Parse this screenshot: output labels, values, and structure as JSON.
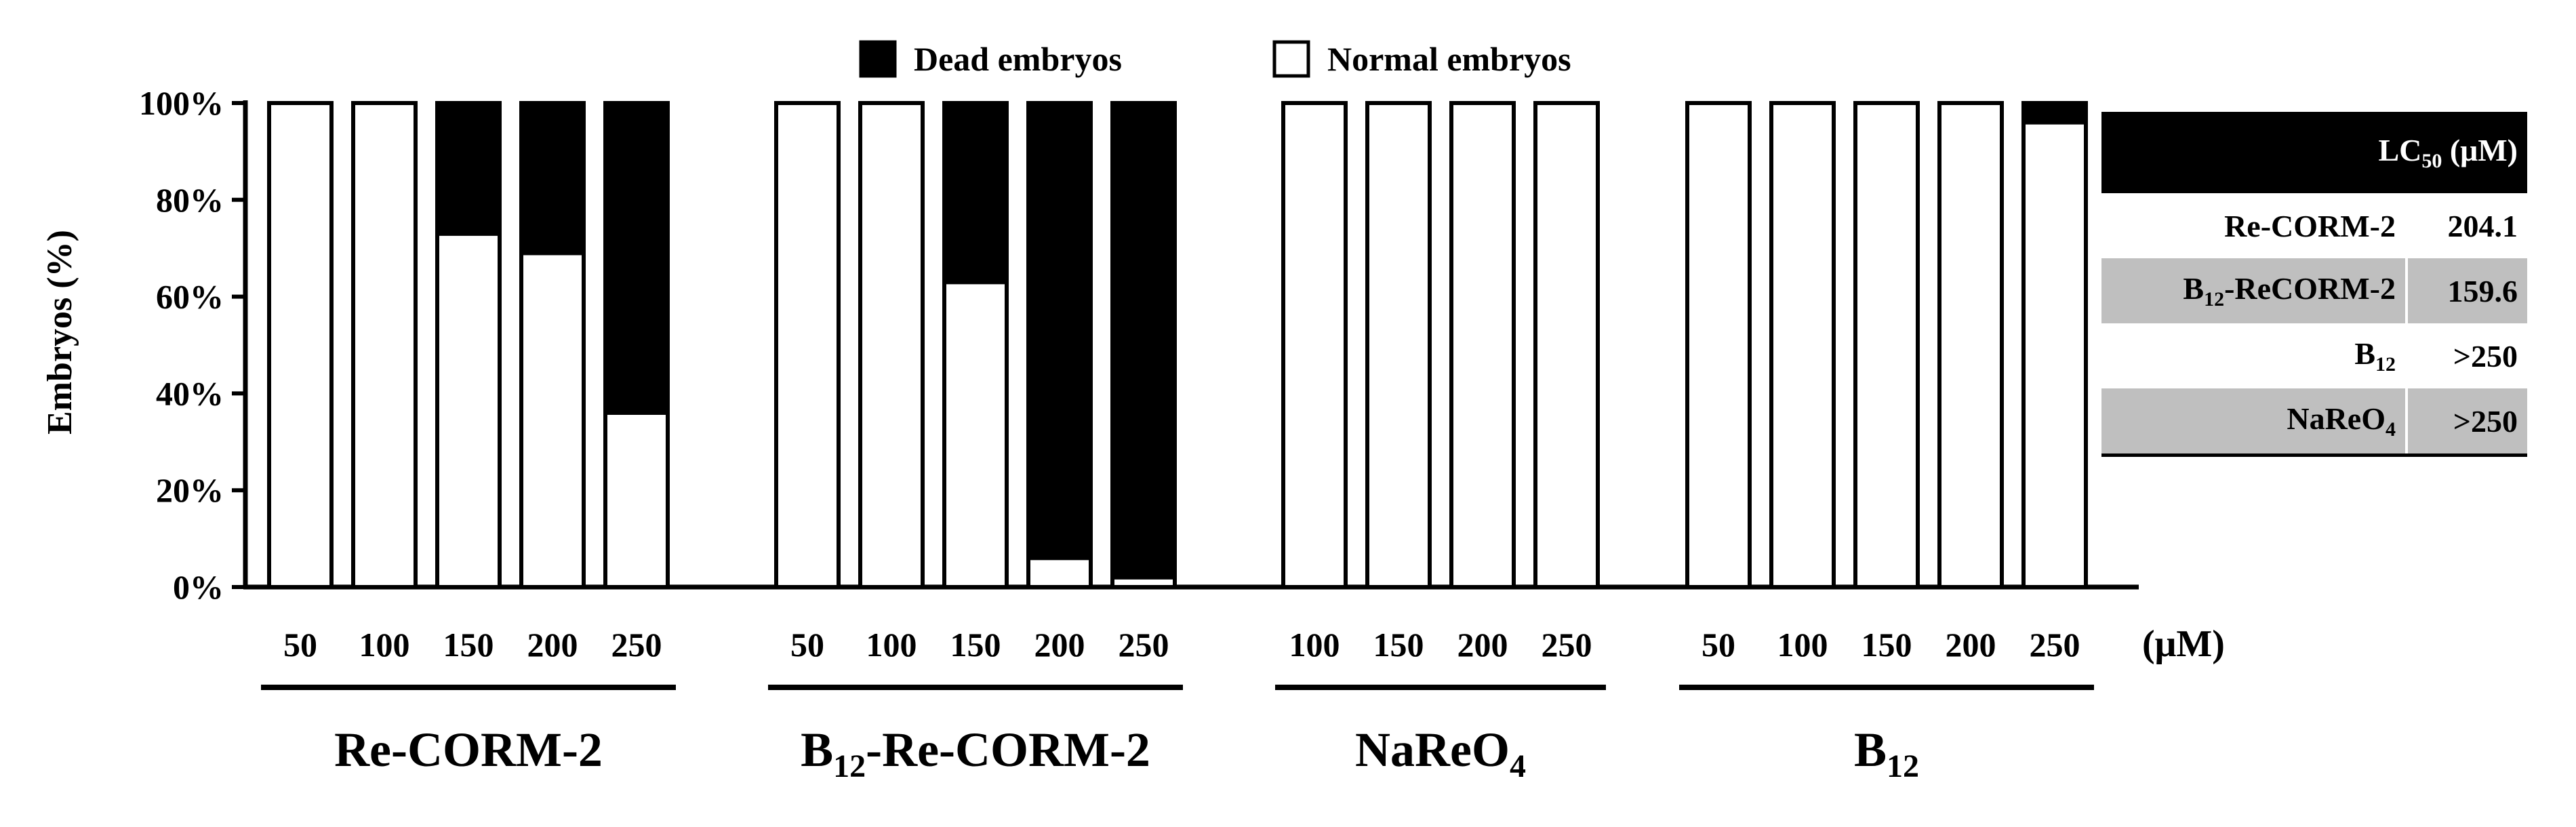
{
  "chart_data": {
    "type": "bar",
    "stacked": true,
    "ylabel": "Embryos (%)",
    "ylim": [
      0,
      100
    ],
    "yticks": [
      "0%",
      "20%",
      "40%",
      "60%",
      "80%",
      "100%"
    ],
    "x_unit": "(μM)",
    "legend": [
      {
        "name": "Dead embryos",
        "color": "#000000"
      },
      {
        "name": "Normal embryos",
        "color": "#ffffff"
      }
    ],
    "legend_position": "top-center",
    "groups": [
      {
        "label": "Re-CORM-2",
        "sub": "",
        "label_tail": "",
        "concentrations": [
          "50",
          "100",
          "150",
          "200",
          "250"
        ],
        "normal": [
          100,
          100,
          73,
          69,
          36
        ],
        "dead": [
          0,
          0,
          27,
          31,
          64
        ]
      },
      {
        "label": "B",
        "sub": "12",
        "label_tail": "-Re-CORM-2",
        "concentrations": [
          "50",
          "100",
          "150",
          "200",
          "250"
        ],
        "normal": [
          100,
          100,
          63,
          6,
          2
        ],
        "dead": [
          0,
          0,
          37,
          94,
          98
        ]
      },
      {
        "label": "NaReO",
        "sub": "4",
        "label_tail": "",
        "concentrations": [
          "100",
          "150",
          "200",
          "250"
        ],
        "normal": [
          100,
          100,
          100,
          100
        ],
        "dead": [
          0,
          0,
          0,
          0
        ]
      },
      {
        "label": "B",
        "sub": "12",
        "label_tail": "",
        "concentrations": [
          "50",
          "100",
          "150",
          "200",
          "250"
        ],
        "normal": [
          100,
          100,
          100,
          100,
          96
        ],
        "dead": [
          0,
          0,
          0,
          0,
          4
        ]
      }
    ]
  },
  "lc50_table": {
    "header": {
      "label": "LC",
      "sub": "50",
      "unit": " (μM)"
    },
    "rows": [
      {
        "name_main": "Re-CORM-2",
        "name_sub": "",
        "name_tail": "",
        "value": "204.1"
      },
      {
        "name_main": "B",
        "name_sub": "12",
        "name_tail": "-ReCORM-2",
        "value": "159.6"
      },
      {
        "name_main": "B",
        "name_sub": "12",
        "name_tail": "",
        "value": ">250"
      },
      {
        "name_main": "NaReO",
        "name_sub": "4",
        "name_tail": "",
        "value": ">250"
      }
    ]
  }
}
